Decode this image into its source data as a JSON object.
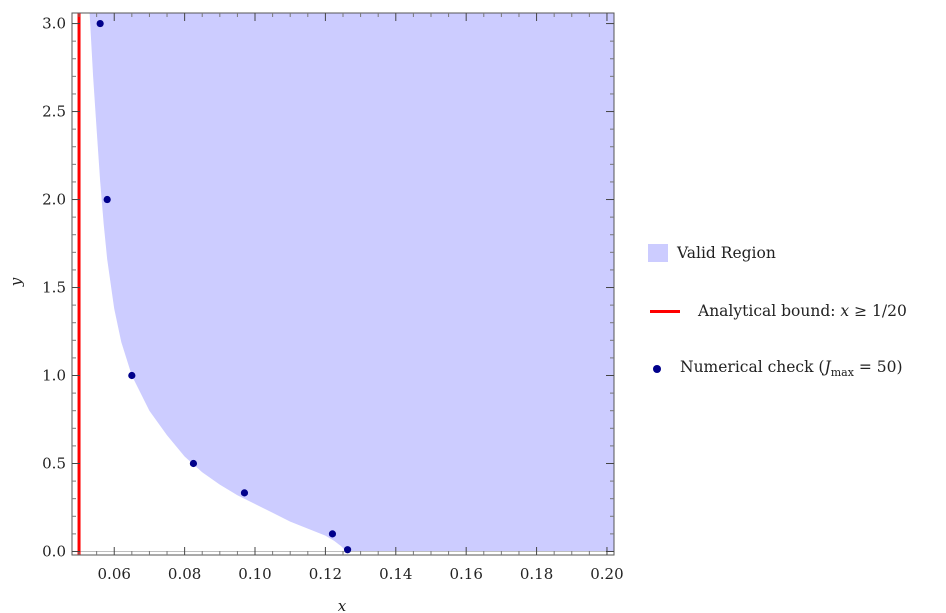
{
  "colors": {
    "region_fill": "#ccccff",
    "bound_line": "#ff0000",
    "points": "#00008b",
    "frame": "#555555"
  },
  "chart_data": {
    "type": "area",
    "xlabel": "x",
    "ylabel": "y",
    "xlim": [
      0.048,
      0.202
    ],
    "ylim": [
      -0.02,
      3.06
    ],
    "x_ticks": [
      0.06,
      0.08,
      0.1,
      0.12,
      0.14,
      0.16,
      0.18,
      0.2
    ],
    "x_tick_labels": [
      "0.06",
      "0.08",
      "0.10",
      "0.12",
      "0.14",
      "0.16",
      "0.18",
      "0.20"
    ],
    "y_ticks": [
      0.0,
      0.5,
      1.0,
      1.5,
      2.0,
      2.5,
      3.0
    ],
    "y_tick_labels": [
      "0.0",
      "0.5",
      "1.0",
      "1.5",
      "2.0",
      "2.5",
      "3.0"
    ],
    "grid": false,
    "legend_position": "right",
    "series": [
      {
        "name": "Valid Region",
        "kind": "region",
        "boundary": [
          {
            "x": 0.053,
            "y": 3.06
          },
          {
            "x": 0.054,
            "y": 2.7
          },
          {
            "x": 0.055,
            "y": 2.4
          },
          {
            "x": 0.056,
            "y": 2.1
          },
          {
            "x": 0.057,
            "y": 1.86
          },
          {
            "x": 0.058,
            "y": 1.66
          },
          {
            "x": 0.06,
            "y": 1.38
          },
          {
            "x": 0.062,
            "y": 1.19
          },
          {
            "x": 0.065,
            "y": 1.0
          },
          {
            "x": 0.07,
            "y": 0.8
          },
          {
            "x": 0.075,
            "y": 0.66
          },
          {
            "x": 0.08,
            "y": 0.54
          },
          {
            "x": 0.085,
            "y": 0.45
          },
          {
            "x": 0.09,
            "y": 0.38
          },
          {
            "x": 0.095,
            "y": 0.32
          },
          {
            "x": 0.1,
            "y": 0.27
          },
          {
            "x": 0.105,
            "y": 0.22
          },
          {
            "x": 0.11,
            "y": 0.17
          },
          {
            "x": 0.115,
            "y": 0.13
          },
          {
            "x": 0.12,
            "y": 0.09
          },
          {
            "x": 0.1225,
            "y": 0.06
          },
          {
            "x": 0.1245,
            "y": 0.03
          },
          {
            "x": 0.126,
            "y": 0.0
          }
        ],
        "x_max": 0.202,
        "y_max": 3.06
      },
      {
        "name": "Analytical bound: x ≥ 1/20",
        "kind": "vline",
        "x": 0.05
      },
      {
        "name": "Numerical check (J_max = 50)",
        "kind": "scatter",
        "points": [
          {
            "x": 0.056,
            "y": 3.0
          },
          {
            "x": 0.058,
            "y": 2.0
          },
          {
            "x": 0.065,
            "y": 1.0
          },
          {
            "x": 0.0825,
            "y": 0.5
          },
          {
            "x": 0.097,
            "y": 0.333
          },
          {
            "x": 0.122,
            "y": 0.1
          },
          {
            "x": 0.1263,
            "y": 0.01
          }
        ]
      }
    ]
  },
  "legend": {
    "region_label": "Valid Region",
    "bound_label_prefix": "Analytical bound: ",
    "bound_var": "x",
    "bound_rel": " ≥ 1/20",
    "check_label_prefix": "Numerical check (",
    "check_var": "J",
    "check_sub": "max",
    "check_rel": " = 50)"
  }
}
